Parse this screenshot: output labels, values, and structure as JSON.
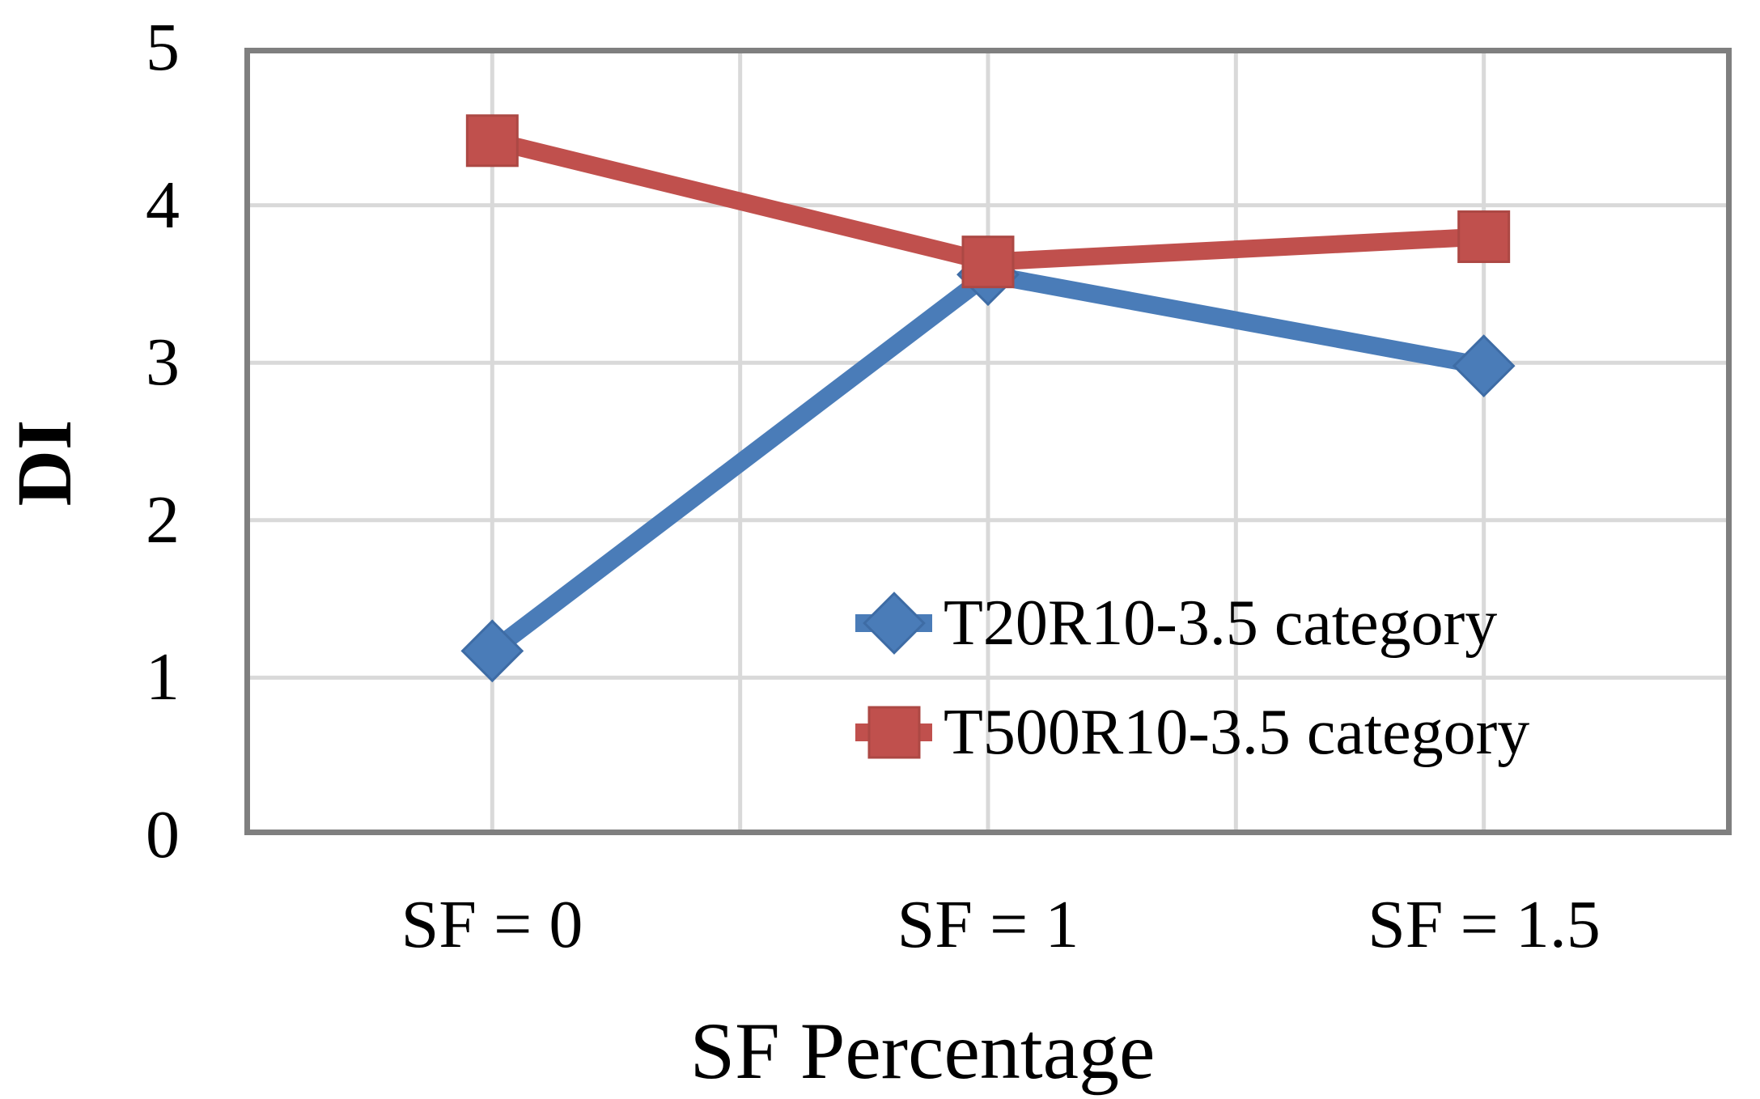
{
  "chart_data": {
    "type": "line",
    "title": "",
    "xlabel": "SF Percentage",
    "ylabel": "DI",
    "categories": [
      "SF = 0",
      "SF = 1",
      "SF = 1.5"
    ],
    "ytick_labels": [
      "5",
      "4",
      "3",
      "2",
      "1",
      "0"
    ],
    "ylim": [
      0,
      5
    ],
    "ytick_step": 1,
    "grid": true,
    "legend_position": "inside-bottom-right",
    "series": [
      {
        "name": "T20R10-3.5 category",
        "marker": "diamond",
        "color": "#4A7CB8",
        "marker_edge": "#3E6CA5",
        "values": [
          1.17,
          3.56,
          2.98
        ]
      },
      {
        "name": "T500R10-3.5 category",
        "marker": "square",
        "color": "#C0504D",
        "marker_edge": "#AC4844",
        "values": [
          4.41,
          3.64,
          3.8
        ]
      }
    ]
  },
  "colors": {
    "background": "#FFFFFF",
    "plot_border": "#7F7F7F",
    "gridline": "#D9D9D9",
    "text": "#000000"
  }
}
